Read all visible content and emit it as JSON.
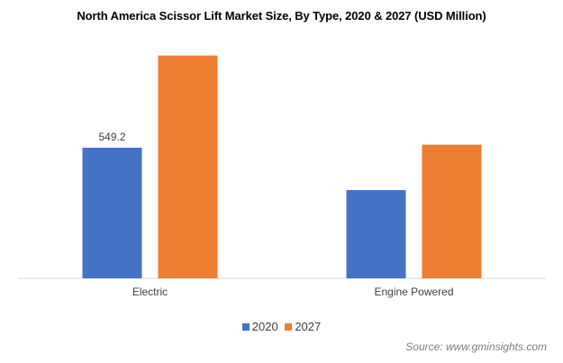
{
  "chart_data": {
    "type": "bar",
    "title": "North America Scissor Lift Market Size, By Type, 2020 & 2027 (USD Million)",
    "categories": [
      "Electric",
      "Engine Powered"
    ],
    "series": [
      {
        "name": "2020",
        "color": "#4472c4",
        "values": [
          549.2,
          371
        ]
      },
      {
        "name": "2027",
        "color": "#ed7d31",
        "values": [
          937,
          562
        ]
      }
    ],
    "data_labels": [
      {
        "series": 0,
        "category": 0,
        "text": "549.2"
      }
    ],
    "ylim": [
      0,
      1000
    ],
    "grid": false,
    "legend_position": "bottom",
    "xlabel": "",
    "ylabel": "",
    "source": "Source: www.gminsights.com"
  }
}
